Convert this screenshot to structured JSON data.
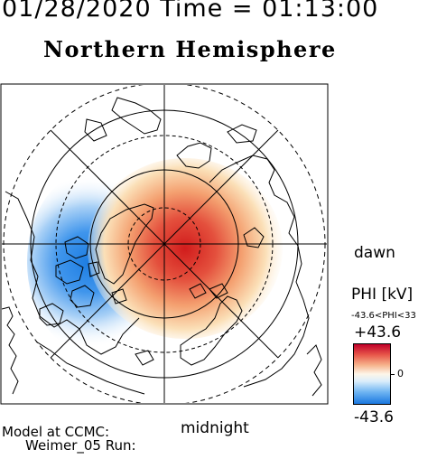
{
  "header": {
    "datetime": "01/28/2020 Time = 01:13:00",
    "hemisphere": "Northern Hemisphere"
  },
  "map": {
    "labels": {
      "dawn": "dawn",
      "midnight": "midnight"
    },
    "potential_pattern": {
      "positive_cell": "dawn side (right), red, max +43.6 kV",
      "negative_cell": "dusk side (left), blue, min -43.6 kV"
    }
  },
  "colorbar": {
    "title": "PHI [kV]",
    "range_text": "-43.6<PHI<33",
    "max_label": "+43.6",
    "zero_label": "0",
    "min_label": "-43.6",
    "colors": {
      "max": "#c0002a",
      "mid": "#fdf6e9",
      "min": "#1a78e0"
    }
  },
  "footer": {
    "model_line": "Model at CCMC:",
    "run_line": "Weimer_05 Run:"
  }
}
